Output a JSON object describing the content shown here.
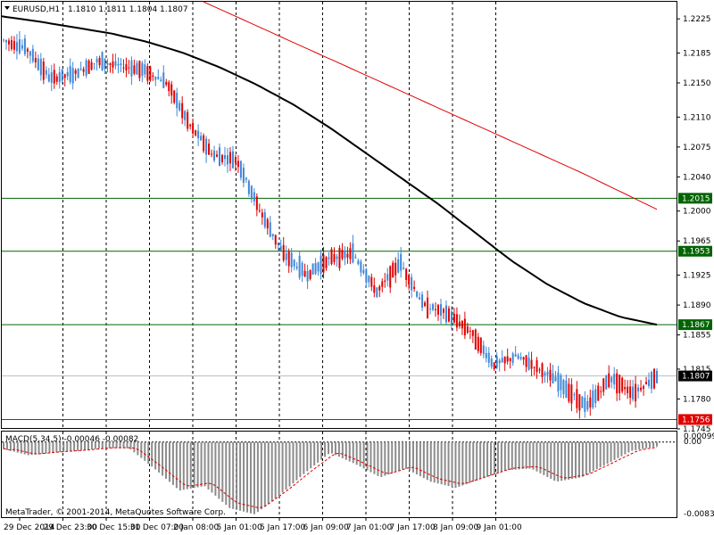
{
  "header": {
    "symbol_label": "EURUSD,H1",
    "ohlc": "1.1810 1.1811 1.1804 1.1807"
  },
  "macd": {
    "label": "MACD(5,34,5) -0.00046 -0.00082",
    "scale_top": "0.00099",
    "scale_zero": "0.00",
    "scale_bottom": "-0.00832",
    "min": -0.00832,
    "max": 0.00099
  },
  "copyright": "MetaTrader, © 2001-2014, MetaQuotes Software Corp.",
  "colors": {
    "bull": "#3d87d9",
    "bear": "#e00000",
    "ma_long": "#000000",
    "ma_red": "#e00000",
    "green_line": "#006400",
    "red_line": "#e00000",
    "grid": "#000000",
    "hist": "#8c8c8c",
    "signal": "#e00000"
  },
  "price_labels": [
    "1.2225",
    "1.2185",
    "1.2150",
    "1.2110",
    "1.2075",
    "1.2040",
    "1.2000",
    "1.1965",
    "1.1925",
    "1.1890",
    "1.1855",
    "1.1815",
    "1.1780",
    "1.1745"
  ],
  "levels": [
    {
      "value": 1.2015,
      "label": "1.2015",
      "kind": "green"
    },
    {
      "value": 1.1953,
      "label": "1.1953",
      "kind": "green"
    },
    {
      "value": 1.1867,
      "label": "1.1867",
      "kind": "green"
    },
    {
      "value": 1.1807,
      "label": "1.1807",
      "kind": "current"
    },
    {
      "value": 1.1756,
      "label": "1.1756",
      "kind": "red"
    }
  ],
  "time_labels": [
    "29 Dec 2014",
    "29 Dec 23:00",
    "30 Dec 15:00",
    "31 Dec 07:00",
    "2 Jan 08:00",
    "5 Jan 01:00",
    "5 Jan 17:00",
    "6 Jan 09:00",
    "7 Jan 01:00",
    "7 Jan 17:00",
    "8 Jan 09:00",
    "9 Jan 01:00"
  ],
  "chart_data": {
    "type": "candlestick",
    "symbol": "EURUSD",
    "timeframe": "H1",
    "ylim": [
      1.1745,
      1.2245
    ],
    "ma_long": [
      1.2228,
      1.2222,
      1.2215,
      1.2208,
      1.2198,
      1.2185,
      1.2168,
      1.2148,
      1.2125,
      1.2098,
      1.2068,
      1.2038,
      1.2008,
      1.1975,
      1.1942,
      1.1914,
      1.1892,
      1.1876,
      1.1867
    ],
    "ma_red": [
      1.2245,
      1.2205,
      1.2165,
      1.2125,
      1.2085,
      1.2045,
      1.2002
    ],
    "price_path": [
      1.22,
      1.219,
      1.2155,
      1.216,
      1.2175,
      1.217,
      1.2165,
      1.215,
      1.21,
      1.2065,
      1.206,
      1.2,
      1.195,
      1.1925,
      1.1945,
      1.195,
      1.1905,
      1.194,
      1.189,
      1.188,
      1.186,
      1.182,
      1.183,
      1.1815,
      1.1795,
      1.177,
      1.1805,
      1.1787,
      1.1807
    ],
    "macd_hist_path": [
      -0.0008,
      -0.0015,
      -0.0012,
      -0.001,
      -0.0007,
      -0.0007,
      -0.003,
      -0.0055,
      -0.005,
      -0.0075,
      -0.0082,
      -0.006,
      -0.0035,
      -0.0012,
      -0.0025,
      -0.004,
      -0.003,
      -0.0045,
      -0.0052,
      -0.0042,
      -0.0032,
      -0.003,
      -0.0045,
      -0.004,
      -0.0025,
      -0.001,
      -0.0005
    ]
  }
}
